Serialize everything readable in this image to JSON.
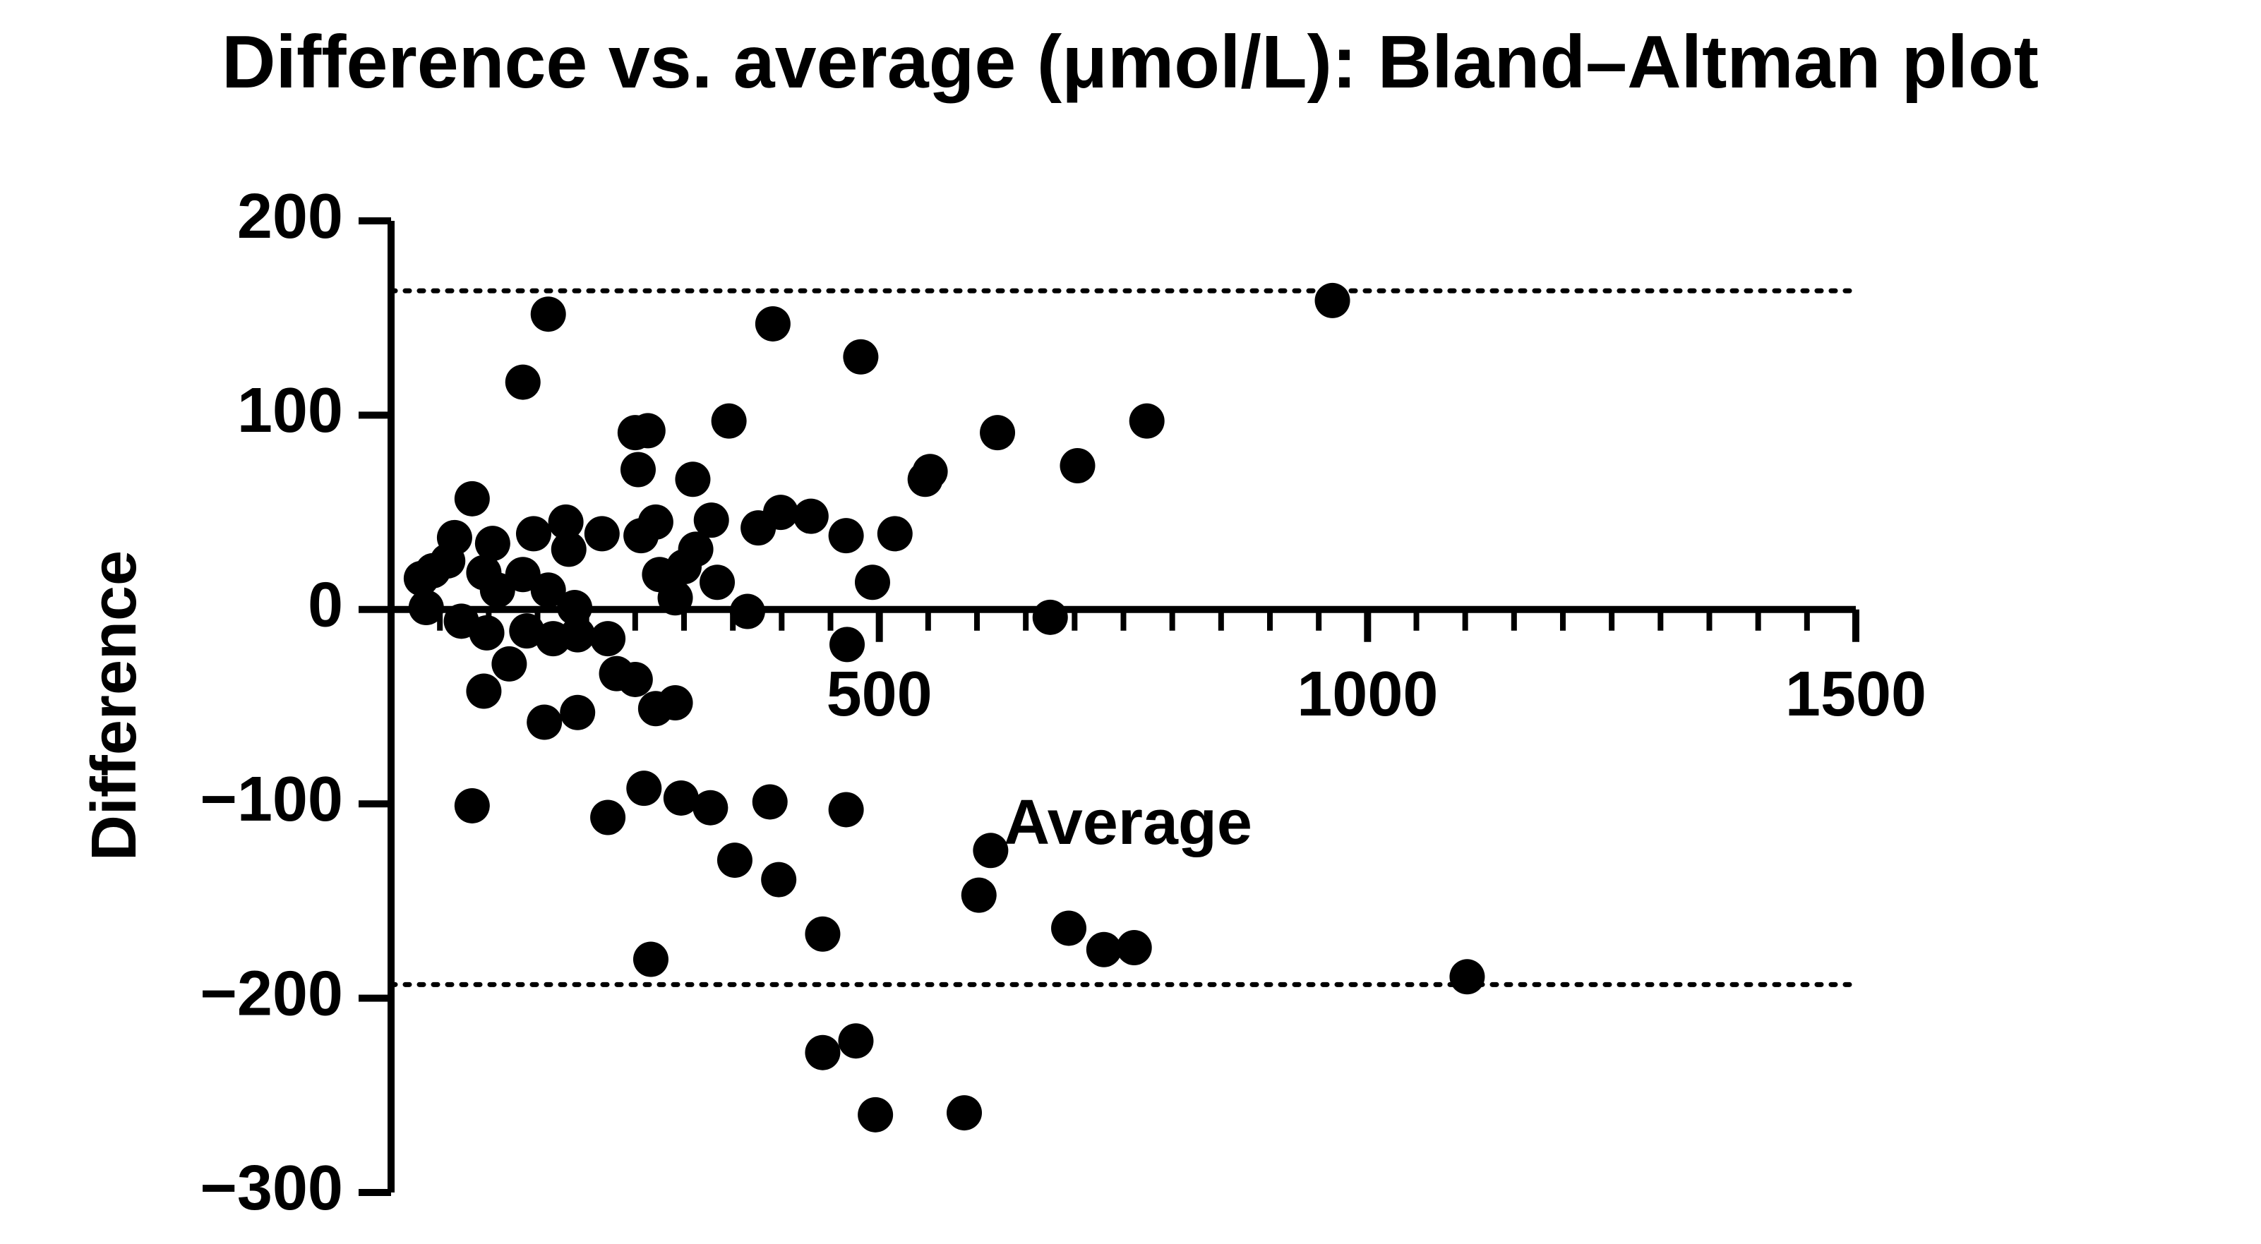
{
  "chart_data": {
    "type": "scatter",
    "title": "Difference vs. average (μmol/L): Bland–Altman plot",
    "x_label": "Average",
    "y_label": "Difference",
    "xlim": [
      0,
      1500
    ],
    "ylim": [
      -300,
      200
    ],
    "xticks": [
      500,
      1000,
      1500
    ],
    "xminor_ticks": [
      50,
      100,
      150,
      200,
      250,
      300,
      350,
      400,
      450,
      550,
      600,
      650,
      700,
      750,
      800,
      850,
      900,
      950,
      1050,
      1100,
      1150,
      1200,
      1250,
      1300,
      1350,
      1400,
      1450
    ],
    "yticks": [
      200,
      100,
      0,
      {
        "value": -100,
        "label": "−100"
      },
      {
        "value": -200,
        "label": "−200"
      },
      {
        "value": -300,
        "label": "−300"
      }
    ],
    "reference_lines": [
      164,
      -193
    ],
    "color": "#000000",
    "x": [
      964,
      161,
      391,
      481,
      135,
      346,
      774,
      621,
      250,
      263,
      253,
      309,
      552,
      547,
      703,
      83,
      399,
      430,
      328,
      271,
      179,
      376,
      466,
      516,
      216,
      256,
      146,
      182,
      65,
      104,
      312,
      300,
      275,
      334,
      493,
      31,
      43,
      58,
      95,
      135,
      161,
      109,
      291,
      188,
      36,
      365,
      675,
      72,
      98,
      139,
      166,
      191,
      222,
      467,
      231,
      250,
      121,
      95,
      291,
      271,
      191,
      157,
      259,
      297,
      327,
      388,
      466,
      83,
      222,
      614,
      352,
      397,
      602,
      442,
      694,
      730,
      761,
      266,
      1102,
      442,
      476,
      496,
      587
    ],
    "values": [
      159,
      152,
      147,
      130,
      117,
      97,
      97,
      91,
      91,
      92,
      72,
      67,
      71,
      67,
      74,
      57,
      50,
      48,
      46,
      45,
      45,
      42,
      38,
      39,
      39,
      38,
      39,
      31,
      37,
      34,
      31,
      22,
      18,
      14,
      14,
      16,
      20,
      25,
      19,
      18,
      10,
      10,
      6,
      1,
      1,
      -1,
      -4,
      -6,
      -12,
      -11,
      -15,
      -13,
      -15,
      -18,
      -33,
      -36,
      -28,
      -42,
      -48,
      -51,
      -53,
      -58,
      -92,
      -97,
      -102,
      -99,
      -103,
      -101,
      -107,
      -124,
      -129,
      -139,
      -147,
      -167,
      -164,
      -175,
      -174,
      -180,
      -189,
      -228,
      -222,
      -260,
      -259
    ]
  }
}
